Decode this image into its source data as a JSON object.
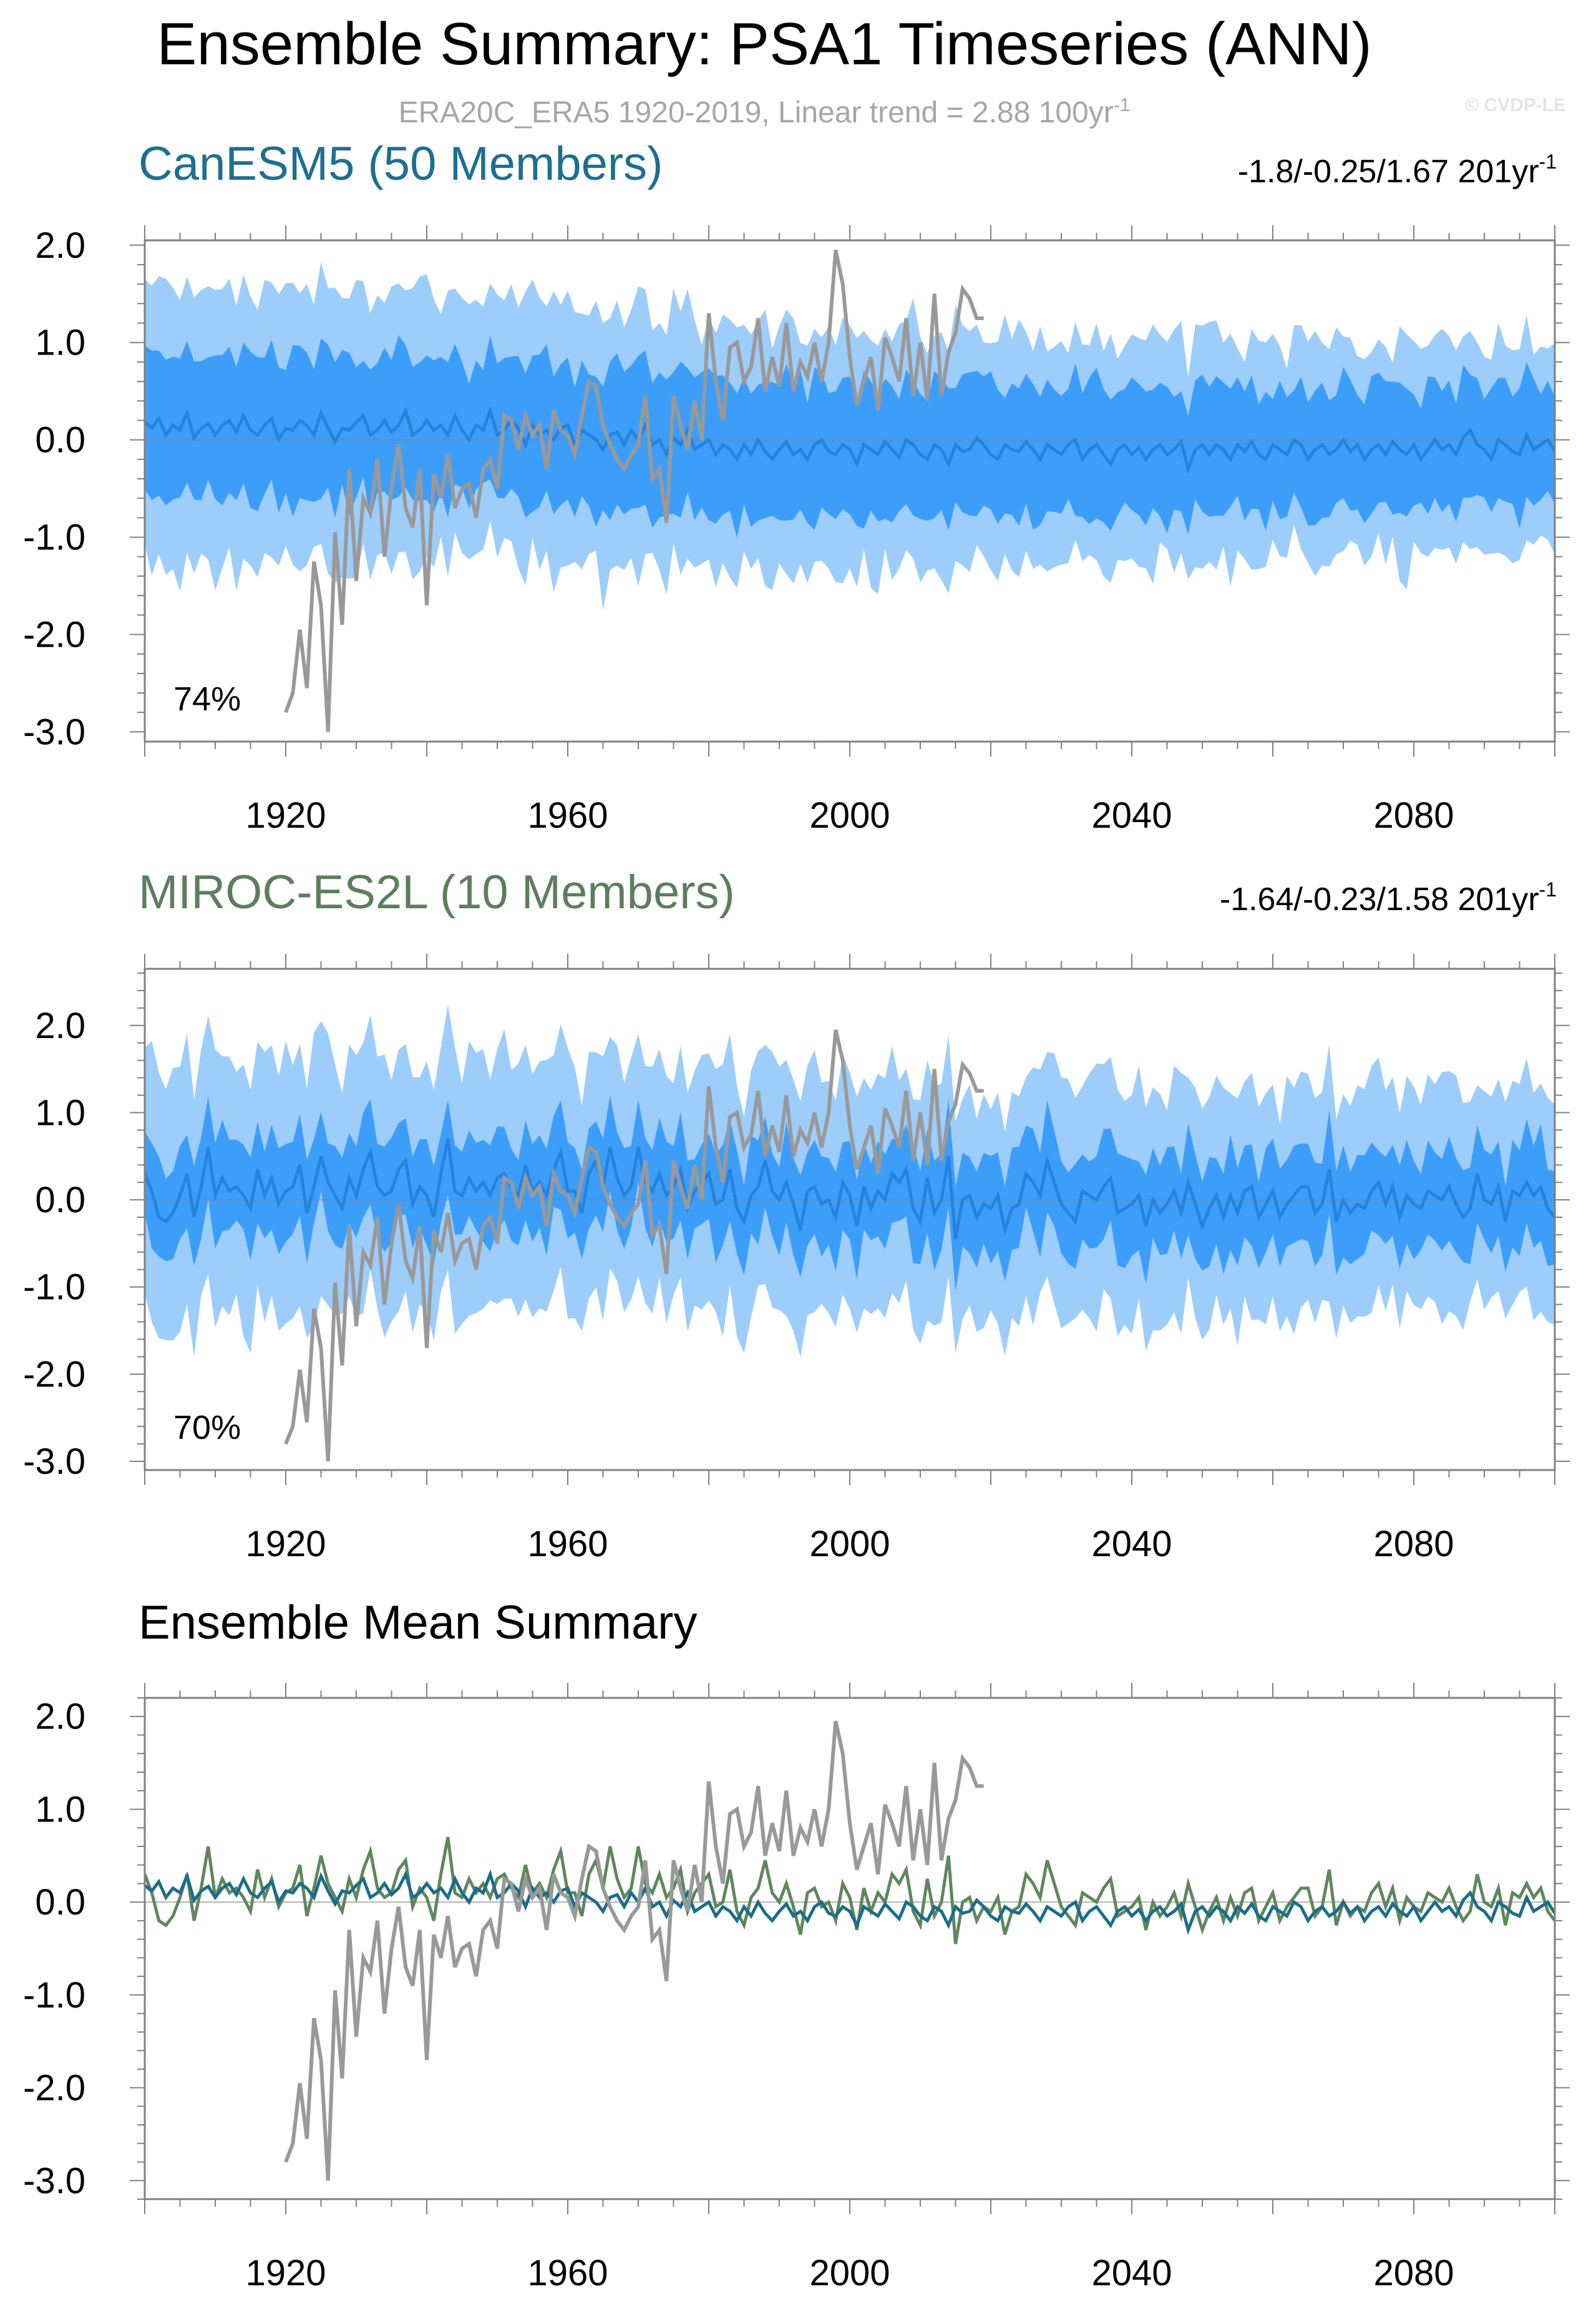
{
  "title": "Ensemble Summary: PSA1 Timeseries (ANN)",
  "subtitle": "ERA20C_ERA5 1920-2019, Linear trend = 2.88 100yr",
  "subtitle_sup": "-1",
  "credit": "© CVDP-LE",
  "colors": {
    "obs": "#999999",
    "band_outer": "#9dcdfa",
    "band_inner": "#3d9ef9",
    "canesm5_mean": "#2582dd",
    "canesm5_title": "#1d6f90",
    "miroc_title": "#5b7f5b",
    "miroc_mean_bottom": "#5f875c",
    "canesm5_mean_bottom": "#1b6d8a",
    "axis": "#808080",
    "zero_line": "#808080"
  },
  "panels": [
    {
      "title": "CanESM5 (50 Members)",
      "trend": "-1.8/-0.25/1.67 201yr",
      "trend_sup": "-1",
      "percent": "74%"
    },
    {
      "title": "MIROC-ES2L (10 Members)",
      "trend": "-1.64/-0.23/1.58 201yr",
      "trend_sup": "-1",
      "percent": "70%"
    },
    {
      "title": "Ensemble Mean Summary"
    }
  ],
  "chart_data": [
    {
      "type": "area",
      "title": "CanESM5 (50 Members)",
      "x_range": [
        1900,
        2100
      ],
      "ylim": [
        -3.1,
        2.05
      ],
      "x_ticks": [
        1920,
        1960,
        2000,
        2040,
        2080
      ],
      "y_ticks": [
        2.0,
        1.0,
        0.0,
        -1.0,
        -2.0,
        -3.0
      ],
      "series_noise_amplitude": {
        "outer_half_width_start": 1.5,
        "outer_half_width_end": 1.05,
        "inner_half_width_start": 0.72,
        "inner_half_width_end": 0.62
      },
      "ensemble_mean_trend": {
        "start": 0.12,
        "end": -0.08
      },
      "percent_label": "74%"
    },
    {
      "type": "area",
      "title": "MIROC-ES2L (10 Members)",
      "x_range": [
        1900,
        2100
      ],
      "ylim": [
        -3.1,
        2.65
      ],
      "x_ticks": [
        1920,
        1960,
        2000,
        2040,
        2080
      ],
      "y_ticks": [
        2.0,
        1.0,
        0.0,
        -1.0,
        -2.0,
        -3.0
      ],
      "ensemble_mean_trend": {
        "start": 0.1,
        "end": -0.12
      },
      "percent_label": "70%"
    },
    {
      "type": "line",
      "title": "Ensemble Mean Summary",
      "x_range": [
        1900,
        2100
      ],
      "ylim": [
        -3.2,
        2.2
      ],
      "x_ticks": [
        1920,
        1960,
        2000,
        2040,
        2080
      ],
      "y_ticks": [
        2.0,
        1.0,
        0.0,
        -1.0,
        -2.0,
        -3.0
      ]
    }
  ],
  "obs_series": {
    "name": "ERA20C_ERA5",
    "x": [
      1920,
      1921,
      1922,
      1923,
      1924,
      1925,
      1926,
      1927,
      1928,
      1929,
      1930,
      1931,
      1932,
      1933,
      1934,
      1935,
      1936,
      1937,
      1938,
      1939,
      1940,
      1941,
      1942,
      1943,
      1944,
      1945,
      1946,
      1947,
      1948,
      1949,
      1950,
      1951,
      1952,
      1953,
      1954,
      1955,
      1956,
      1957,
      1958,
      1959,
      1960,
      1961,
      1962,
      1963,
      1964,
      1965,
      1966,
      1967,
      1968,
      1969,
      1970,
      1971,
      1972,
      1973,
      1974,
      1975,
      1976,
      1977,
      1978,
      1979,
      1980,
      1981,
      1982,
      1983,
      1984,
      1985,
      1986,
      1987,
      1988,
      1989,
      1990,
      1991,
      1992,
      1993,
      1994,
      1995,
      1996,
      1997,
      1998,
      1999,
      2000,
      2001,
      2002,
      2003,
      2004,
      2005,
      2006,
      2007,
      2008,
      2009,
      2010,
      2011,
      2012,
      2013,
      2014,
      2015,
      2016,
      2017,
      2018,
      2019
    ],
    "values": [
      -2.8,
      -2.6,
      -1.95,
      -2.55,
      -1.25,
      -1.7,
      -3.0,
      -0.95,
      -1.9,
      -0.3,
      -1.45,
      -0.6,
      -0.75,
      -0.2,
      -1.2,
      -0.5,
      -0.05,
      -0.7,
      -0.9,
      -0.3,
      -1.7,
      -0.35,
      -0.6,
      -0.15,
      -0.7,
      -0.5,
      -0.45,
      -0.8,
      -0.3,
      -0.2,
      -0.5,
      0.25,
      0.2,
      -0.1,
      0.25,
      0.05,
      0.15,
      -0.3,
      0.3,
      0.1,
      0.05,
      -0.15,
      0.25,
      0.6,
      0.55,
      0.15,
      -0.05,
      -0.2,
      -0.3,
      -0.15,
      -0.05,
      0.45,
      -0.4,
      -0.3,
      -0.85,
      0.45,
      0.15,
      -0.1,
      0.4,
      0.0,
      1.3,
      0.6,
      0.2,
      0.95,
      1.0,
      0.6,
      0.75,
      1.25,
      0.5,
      0.85,
      0.55,
      1.2,
      0.5,
      0.8,
      0.65,
      1.0,
      0.6,
      1.0,
      1.95,
      1.6,
      0.85,
      0.35,
      0.6,
      0.85,
      0.3,
      1.05,
      0.85,
      0.6,
      1.25,
      0.45,
      1.0,
      0.4,
      1.5,
      0.45,
      0.9,
      1.1,
      1.55,
      1.45,
      1.25,
      1.25
    ]
  },
  "canesm5_mean": [
    0.18,
    0.12,
    0.22,
    0.05,
    0.15,
    0.1,
    0.28,
    0.02,
    0.12,
    0.17,
    0.05,
    0.15,
    0.2,
    0.08,
    0.25,
    0.1,
    0.05,
    0.15,
    0.22,
    0.0,
    0.12,
    0.1,
    0.2,
    0.15,
    0.05,
    0.28,
    0.12,
    -0.02,
    0.12,
    0.1,
    0.18,
    0.25,
    0.05,
    0.1,
    0.2,
    0.08,
    0.15,
    0.3,
    0.05,
    0.1,
    0.2,
    0.1,
    0.15,
    0.05,
    0.25,
    0.1,
    0.0,
    0.15,
    0.1,
    0.3,
    0.05,
    0.1,
    0.2,
    0.12,
    -0.05,
    0.15,
    0.05,
    0.1,
    0.0,
    0.12,
    0.15,
    -0.05,
    0.1,
    0.05,
    0.0,
    -0.1,
    0.05,
    0.08,
    -0.05,
    0.1,
    0.0,
    0.15,
    -0.05,
    0.0,
    -0.15,
    0.02,
    -0.05,
    0.1,
    -0.1,
    -0.05,
    0.0,
    -0.15,
    -0.05,
    -0.1,
    -0.2,
    -0.05,
    -0.15,
    0.0,
    -0.12,
    -0.2,
    -0.1,
    -0.02,
    -0.15,
    -0.1,
    -0.2,
    -0.05,
    0.0,
    -0.12,
    -0.15,
    -0.05,
    -0.1,
    -0.25,
    -0.05,
    -0.1,
    -0.15,
    -0.02,
    -0.1,
    -0.18,
    0.0,
    -0.05,
    -0.15,
    -0.2,
    -0.05,
    -0.1,
    -0.25,
    -0.05,
    -0.12,
    -0.1,
    0.02,
    -0.05,
    -0.15,
    -0.2,
    -0.05,
    -0.1,
    -0.12,
    -0.02,
    -0.1,
    -0.2,
    -0.05,
    -0.1,
    -0.15,
    -0.05,
    0.0,
    -0.2,
    -0.1,
    -0.05,
    -0.15,
    -0.25,
    -0.1,
    -0.05,
    -0.15,
    -0.08,
    -0.2,
    -0.1,
    -0.05,
    -0.15,
    -0.1,
    -0.02,
    -0.3,
    -0.1,
    -0.05,
    -0.15,
    -0.05,
    -0.1,
    -0.2,
    -0.05,
    -0.12,
    -0.02,
    -0.15,
    -0.2,
    -0.05,
    -0.1,
    -0.15,
    0.0,
    -0.05,
    -0.2,
    -0.1,
    -0.05,
    -0.15,
    -0.1,
    0.0,
    -0.12,
    -0.05,
    -0.2,
    -0.1,
    -0.05,
    -0.15,
    -0.02,
    -0.1,
    -0.15,
    -0.05,
    -0.2,
    -0.1,
    0.0,
    -0.1,
    -0.05,
    -0.15,
    0.02,
    0.1,
    -0.05,
    -0.1,
    -0.2,
    0.0,
    -0.05,
    -0.12,
    -0.15,
    0.05,
    -0.1,
    -0.05,
    0.0,
    -0.12,
    -0.15,
    -0.05,
    -0.08
  ],
  "miroc_mean": [
    0.3,
    0.1,
    -0.2,
    -0.25,
    -0.15,
    0.05,
    0.3,
    -0.2,
    0.15,
    0.6,
    0.05,
    0.25,
    0.1,
    0.15,
    0.05,
    -0.1,
    0.35,
    0.05,
    0.25,
    -0.05,
    0.1,
    0.15,
    0.4,
    -0.15,
    0.15,
    0.5,
    0.2,
    0.05,
    -0.1,
    0.25,
    0.05,
    0.35,
    0.55,
    0.15,
    0.05,
    0.1,
    0.35,
    0.45,
    -0.05,
    0.15,
    0.05,
    -0.2,
    0.3,
    0.7,
    0.1,
    0.05,
    0.25,
    0.1,
    0.2,
    0.05,
    0.25,
    0.3,
    0.15,
    0.05,
    0.4,
    0.1,
    0.2,
    0.05,
    0.35,
    0.55,
    0.1,
    0.1,
    -0.15,
    0.3,
    0.45,
    0.15,
    0.6,
    0.25,
    0.05,
    0.15,
    0.6,
    0.2,
    0.1,
    0.3,
    0.05,
    0.15,
    0.35,
    -0.1,
    0.1,
    0.2,
    0.3,
    -0.05,
    0.0,
    0.35,
    -0.1,
    -0.25,
    0.05,
    0.15,
    0.45,
    0.1,
    0.0,
    0.2,
    -0.05,
    -0.35,
    0.1,
    0.15,
    -0.05,
    0.0,
    -0.2,
    0.2,
    0.05,
    -0.3,
    0.15,
    -0.1,
    0.1,
    0.0,
    0.3,
    0.2,
    0.35,
    -0.1,
    -0.25,
    0.25,
    -0.15,
    0.0,
    0.5,
    -0.45,
    0.0,
    0.05,
    -0.2,
    -0.05,
    -0.1,
    0.05,
    -0.35,
    -0.1,
    -0.05,
    0.3,
    0.2,
    0.05,
    0.45,
    0.2,
    -0.05,
    -0.15,
    -0.25,
    0.1,
    0.05,
    0.0,
    0.15,
    0.25,
    -0.15,
    -0.1,
    -0.05,
    0.05,
    -0.3,
    0.0,
    -0.15,
    -0.05,
    0.1,
    -0.15,
    0.2,
    -0.05,
    -0.3,
    -0.1,
    0.05,
    -0.2,
    0.05,
    -0.15,
    0.1,
    0.15,
    -0.2,
    -0.05,
    0.1,
    -0.2,
    -0.05,
    0.05,
    0.15,
    0.15,
    -0.15,
    -0.05,
    0.35,
    -0.25,
    0.0,
    -0.15,
    -0.05,
    -0.1,
    0.1,
    0.2,
    -0.05,
    0.15,
    -0.2,
    0.05,
    -0.05,
    -0.1,
    0.1,
    0.05,
    0.0,
    0.15,
    -0.05,
    -0.2,
    -0.1,
    0.3,
    0.0,
    -0.05,
    0.15,
    -0.25,
    0.1,
    0.05,
    0.2,
    0.05,
    0.15,
    -0.1,
    -0.2,
    -0.05,
    0.1,
    0.0,
    -0.1,
    -0.1,
    0.05,
    -0.05,
    0.2,
    -0.2,
    -0.15,
    -0.3,
    0.05,
    -0.1,
    0.0,
    -0.15,
    0.1,
    -0.55,
    0.55
  ]
}
